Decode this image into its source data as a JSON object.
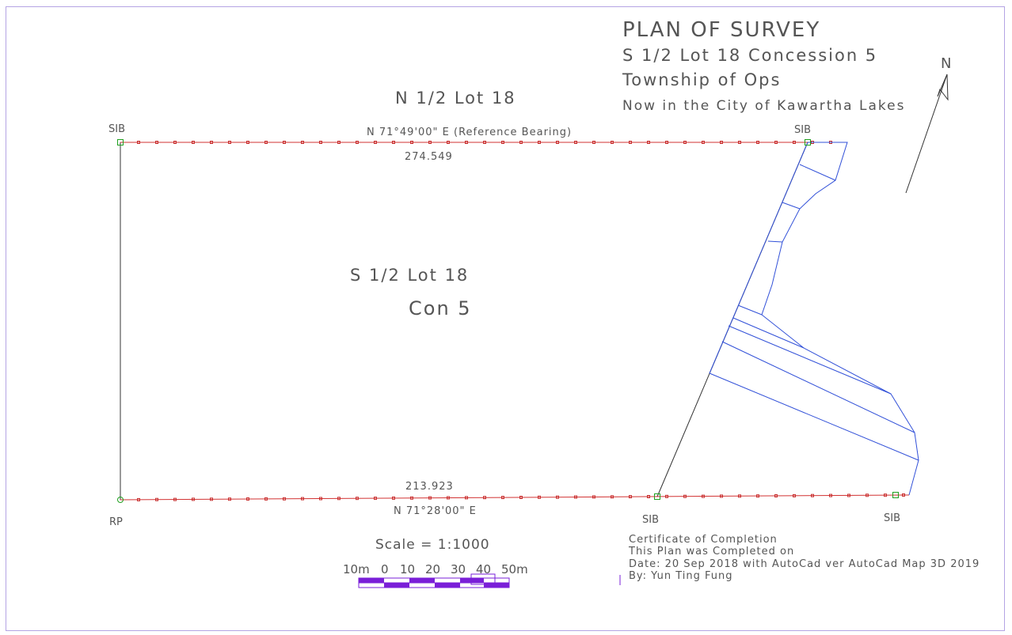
{
  "title_block": {
    "title": "PLAN OF SURVEY",
    "lot_line": "S 1/2 Lot 18 Concession 5",
    "township": "Township of Ops",
    "municipality": "Now in the City of Kawartha Lakes"
  },
  "north_arrow": {
    "label": "N",
    "icon": "north-arrow-icon"
  },
  "parcels": {
    "north_label": "N 1/2 Lot 18",
    "subject_label": "S 1/2 Lot 18",
    "concession_label": "Con 5"
  },
  "boundaries": {
    "north": {
      "bearing": "N 71°49'00\" E (Reference Bearing)",
      "distance": "274.549"
    },
    "south": {
      "bearing": "N 71°28'00\" E",
      "distance": "213.923"
    }
  },
  "monuments": {
    "nw": "SIB",
    "ne": "SIB",
    "sw": "RP",
    "s_mid": "SIB",
    "se": "SIB"
  },
  "scale": {
    "label": "Scale = 1:1000",
    "bar_labels": [
      "10m",
      "0",
      "10",
      "20",
      "30",
      "40",
      "50m"
    ]
  },
  "certificate": {
    "heading": "Certificate of Completion",
    "line1": "This Plan was Completed on",
    "line2": "Date: 20 Sep 2018 with AutoCad ver AutoCad Map 3D 2019",
    "line3": "By: Yun Ting Fung"
  },
  "colors": {
    "frame": "#b4a4e4",
    "boundary_red": "#d23232",
    "marker_red": "#c83232",
    "monument_green": "#1fa01f",
    "feature_blue": "#3150d8",
    "line_black": "#333333",
    "text_gray": "#555555",
    "scale_purple": "#7a1fd8"
  }
}
